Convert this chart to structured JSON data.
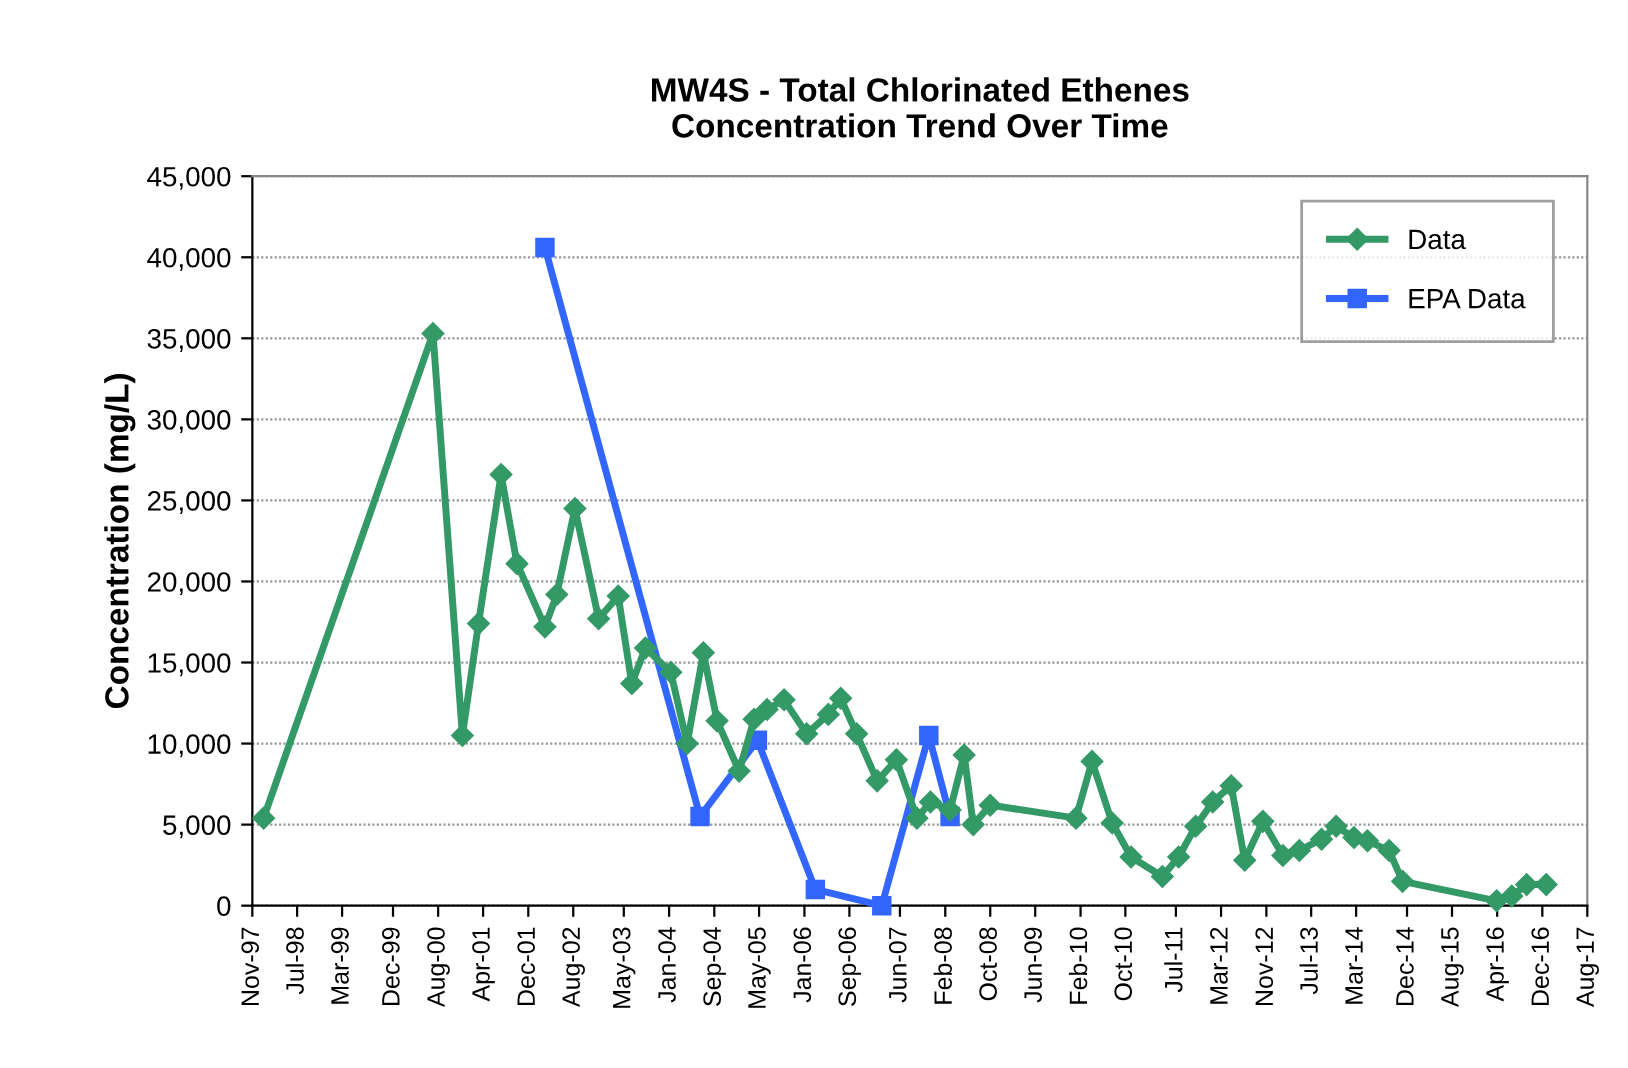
{
  "chart_data": {
    "type": "line",
    "title": "MW4S - Total Chlorinated Ethenes\nConcentration Trend Over Time",
    "ylabel": "Concentration (mg/L)",
    "xlim": [
      "1997-11-15",
      "2017-08-15"
    ],
    "xticks": [
      {
        "value": "1997-11-15",
        "label": "Nov-97"
      },
      {
        "value": "1998-07-15",
        "label": "Jul-98"
      },
      {
        "value": "1999-03-15",
        "label": "Mar-99"
      },
      {
        "value": "1999-12-15",
        "label": "Dec-99"
      },
      {
        "value": "2000-08-15",
        "label": "Aug-00"
      },
      {
        "value": "2001-04-15",
        "label": "Apr-01"
      },
      {
        "value": "2001-12-15",
        "label": "Dec-01"
      },
      {
        "value": "2002-08-15",
        "label": "Aug-02"
      },
      {
        "value": "2003-05-15",
        "label": "May-03"
      },
      {
        "value": "2004-01-15",
        "label": "Jan-04"
      },
      {
        "value": "2004-09-15",
        "label": "Sep-04"
      },
      {
        "value": "2005-05-15",
        "label": "May-05"
      },
      {
        "value": "2006-01-15",
        "label": "Jan-06"
      },
      {
        "value": "2006-09-15",
        "label": "Sep-06"
      },
      {
        "value": "2007-06-15",
        "label": "Jun-07"
      },
      {
        "value": "2008-02-15",
        "label": "Feb-08"
      },
      {
        "value": "2008-10-15",
        "label": "Oct-08"
      },
      {
        "value": "2009-06-15",
        "label": "Jun-09"
      },
      {
        "value": "2010-02-15",
        "label": "Feb-10"
      },
      {
        "value": "2010-10-15",
        "label": "Oct-10"
      },
      {
        "value": "2011-07-15",
        "label": "Jul-11"
      },
      {
        "value": "2012-03-15",
        "label": "Mar-12"
      },
      {
        "value": "2012-11-15",
        "label": "Nov-12"
      },
      {
        "value": "2013-07-15",
        "label": "Jul-13"
      },
      {
        "value": "2014-03-15",
        "label": "Mar-14"
      },
      {
        "value": "2014-12-15",
        "label": "Dec-14"
      },
      {
        "value": "2015-08-15",
        "label": "Aug-15"
      },
      {
        "value": "2016-04-15",
        "label": "Apr-16"
      },
      {
        "value": "2016-12-15",
        "label": "Dec-16"
      },
      {
        "value": "2017-08-15",
        "label": "Aug-17"
      }
    ],
    "ylim": [
      0,
      45000
    ],
    "yticks": [
      {
        "value": 0,
        "label": "0"
      },
      {
        "value": 5000,
        "label": "5,000"
      },
      {
        "value": 10000,
        "label": "10,000"
      },
      {
        "value": 15000,
        "label": "15,000"
      },
      {
        "value": 20000,
        "label": "20,000"
      },
      {
        "value": 25000,
        "label": "25,000"
      },
      {
        "value": 30000,
        "label": "30,000"
      },
      {
        "value": 35000,
        "label": "35,000"
      },
      {
        "value": 40000,
        "label": "40,000"
      },
      {
        "value": 45000,
        "label": "45,000"
      }
    ],
    "grid": "y",
    "legend": "top right",
    "line_style": "solid",
    "series": [
      {
        "name": "Data",
        "color": "#339966",
        "marker": "diamond",
        "x": [
          "1998-01-15",
          "2000-07-18",
          "2000-12-24",
          "2001-03-21",
          "2001-07-21",
          "2001-10-15",
          "2002-03-15",
          "2002-05-18",
          "2002-08-24",
          "2002-12-30",
          "2003-04-15",
          "2003-06-27",
          "2003-09-09",
          "2004-01-24",
          "2004-04-21",
          "2004-07-18",
          "2004-09-30",
          "2005-01-27",
          "2005-04-18",
          "2005-06-27",
          "2005-09-27",
          "2006-01-27",
          "2006-05-24",
          "2006-07-30",
          "2006-10-24",
          "2007-02-12",
          "2007-05-27",
          "2007-09-15",
          "2007-11-27",
          "2008-03-12",
          "2008-05-27",
          "2008-07-15",
          "2008-10-15",
          "2010-01-21",
          "2010-04-18",
          "2010-08-05",
          "2010-11-15",
          "2011-05-03",
          "2011-07-30",
          "2011-10-30",
          "2012-01-30",
          "2012-05-09",
          "2012-07-21",
          "2012-10-27",
          "2013-02-12",
          "2013-05-12",
          "2013-09-09",
          "2013-11-27",
          "2014-03-03",
          "2014-05-15",
          "2014-09-09",
          "2014-11-21",
          "2016-04-12",
          "2016-07-03",
          "2016-09-21",
          "2017-01-05"
        ],
        "values": [
          5400,
          35300,
          10500,
          17400,
          26600,
          21100,
          17200,
          19200,
          24500,
          17700,
          19100,
          13700,
          15900,
          14400,
          10000,
          15600,
          11400,
          8300,
          11500,
          12100,
          12700,
          10600,
          11800,
          12800,
          10600,
          7700,
          9000,
          5400,
          6400,
          5900,
          9300,
          5000,
          6200,
          5400,
          8900,
          5100,
          3000,
          1800,
          3000,
          4900,
          6400,
          7400,
          2800,
          5200,
          3100,
          3400,
          4100,
          4900,
          4200,
          4000,
          3400,
          1500,
          300,
          600,
          1300,
          1300
        ]
      },
      {
        "name": "EPA Data",
        "color": "#3366ff",
        "marker": "square",
        "x": [
          "2002-03-15",
          "2004-06-30",
          "2005-05-06",
          "2006-03-15",
          "2007-03-09",
          "2007-11-18",
          "2008-03-12"
        ],
        "values": [
          40600,
          5500,
          10200,
          1000,
          0,
          10500,
          5500
        ]
      }
    ]
  }
}
